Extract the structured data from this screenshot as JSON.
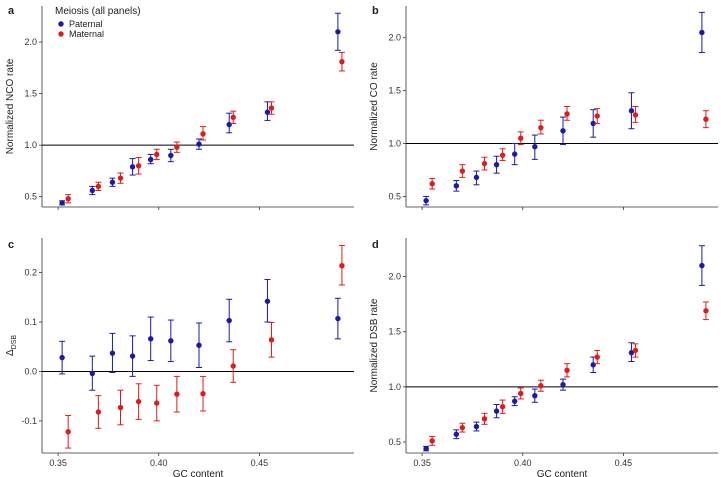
{
  "colors": {
    "paternal": "#1a1aa8",
    "maternal": "#e01b1b",
    "axis": "#333333",
    "refline": "#000000"
  },
  "legend": {
    "title": "Meiosis (all panels)",
    "entries": [
      "Paternal",
      "Maternal"
    ]
  },
  "chart_data": [
    {
      "panel": "a",
      "type": "scatter",
      "xlabel": "",
      "ylabel": "Normalized NCO rate",
      "xlim": [
        0.342,
        0.497
      ],
      "ylim": [
        0.4,
        2.35
      ],
      "xticks": [
        0.35,
        0.4,
        0.45
      ],
      "yticks": [
        0.5,
        1.0,
        1.5,
        2.0
      ],
      "yticklabels": [
        "0.5",
        "1.0",
        "1.5",
        "2.0"
      ],
      "hline": 1.0,
      "series": [
        {
          "name": "Paternal",
          "x": [
            0.352,
            0.367,
            0.377,
            0.387,
            0.396,
            0.406,
            0.42,
            0.435,
            0.454,
            0.489
          ],
          "y": [
            0.44,
            0.56,
            0.64,
            0.79,
            0.86,
            0.9,
            1.01,
            1.2,
            1.32,
            2.1
          ],
          "lo": [
            0.42,
            0.52,
            0.6,
            0.71,
            0.82,
            0.84,
            0.96,
            1.12,
            1.24,
            1.92
          ],
          "hi": [
            0.46,
            0.6,
            0.68,
            0.87,
            0.91,
            0.96,
            1.06,
            1.31,
            1.42,
            2.28
          ]
        },
        {
          "name": "Maternal",
          "x": [
            0.355,
            0.37,
            0.381,
            0.39,
            0.399,
            0.409,
            0.422,
            0.437,
            0.456,
            0.491
          ],
          "y": [
            0.48,
            0.6,
            0.68,
            0.8,
            0.91,
            0.98,
            1.11,
            1.27,
            1.36,
            1.81
          ],
          "lo": [
            0.44,
            0.56,
            0.63,
            0.72,
            0.86,
            0.93,
            1.05,
            1.21,
            1.3,
            1.72
          ],
          "hi": [
            0.52,
            0.64,
            0.73,
            0.88,
            0.96,
            1.03,
            1.18,
            1.33,
            1.42,
            1.9
          ]
        }
      ]
    },
    {
      "panel": "b",
      "type": "scatter",
      "xlabel": "",
      "ylabel": "Normalized CO rate",
      "xlim": [
        0.342,
        0.497
      ],
      "ylim": [
        0.4,
        2.3
      ],
      "xticks": [
        0.35,
        0.4,
        0.45
      ],
      "yticks": [
        0.5,
        1.0,
        1.5,
        2.0
      ],
      "yticklabels": [
        "0.5",
        "1.0",
        "1.5",
        "2.0"
      ],
      "hline": 1.0,
      "series": [
        {
          "name": "Paternal",
          "x": [
            0.352,
            0.367,
            0.377,
            0.387,
            0.396,
            0.406,
            0.42,
            0.435,
            0.454,
            0.489
          ],
          "y": [
            0.46,
            0.6,
            0.68,
            0.8,
            0.9,
            0.97,
            1.12,
            1.19,
            1.31,
            2.05
          ],
          "lo": [
            0.42,
            0.55,
            0.61,
            0.72,
            0.8,
            0.85,
            0.99,
            1.06,
            1.14,
            1.86
          ],
          "hi": [
            0.5,
            0.65,
            0.74,
            0.88,
            1.0,
            1.08,
            1.25,
            1.32,
            1.48,
            2.24
          ]
        },
        {
          "name": "Maternal",
          "x": [
            0.355,
            0.37,
            0.381,
            0.39,
            0.399,
            0.409,
            0.422,
            0.437,
            0.456,
            0.491
          ],
          "y": [
            0.62,
            0.74,
            0.81,
            0.89,
            1.05,
            1.15,
            1.28,
            1.26,
            1.27,
            1.23
          ],
          "lo": [
            0.57,
            0.68,
            0.75,
            0.84,
            0.99,
            1.09,
            1.22,
            1.19,
            1.2,
            1.15
          ],
          "hi": [
            0.67,
            0.8,
            0.87,
            0.95,
            1.11,
            1.22,
            1.35,
            1.33,
            1.35,
            1.31
          ]
        }
      ]
    },
    {
      "panel": "c",
      "type": "scatter",
      "xlabel": "GC content",
      "ylabel": "Δ_DSB",
      "xlim": [
        0.342,
        0.497
      ],
      "ylim": [
        -0.165,
        0.27
      ],
      "xticks": [
        0.35,
        0.4,
        0.45
      ],
      "xticklabels": [
        "0.35",
        "0.40",
        "0.45"
      ],
      "yticks": [
        -0.1,
        0.0,
        0.1,
        0.2
      ],
      "yticklabels": [
        "-0.1",
        "0.0",
        "0.1",
        "0.2"
      ],
      "hline": 0.0,
      "series": [
        {
          "name": "Paternal",
          "x": [
            0.352,
            0.367,
            0.377,
            0.387,
            0.396,
            0.406,
            0.42,
            0.435,
            0.454,
            0.489
          ],
          "y": [
            0.028,
            -0.004,
            0.037,
            0.031,
            0.066,
            0.062,
            0.053,
            0.103,
            0.142,
            0.107
          ],
          "lo": [
            -0.005,
            -0.038,
            -0.002,
            -0.01,
            0.022,
            0.02,
            0.008,
            0.06,
            0.1,
            0.066
          ],
          "hi": [
            0.061,
            0.031,
            0.077,
            0.072,
            0.11,
            0.104,
            0.098,
            0.146,
            0.186,
            0.148
          ]
        },
        {
          "name": "Maternal",
          "x": [
            0.355,
            0.37,
            0.381,
            0.39,
            0.399,
            0.409,
            0.422,
            0.437,
            0.456,
            0.491
          ],
          "y": [
            -0.122,
            -0.082,
            -0.073,
            -0.061,
            -0.064,
            -0.046,
            -0.045,
            0.011,
            0.064,
            0.214
          ],
          "lo": [
            -0.155,
            -0.115,
            -0.108,
            -0.097,
            -0.1,
            -0.082,
            -0.08,
            -0.022,
            0.029,
            0.175
          ],
          "hi": [
            -0.089,
            -0.049,
            -0.038,
            -0.025,
            -0.028,
            -0.01,
            -0.01,
            0.044,
            0.099,
            0.255
          ]
        }
      ]
    },
    {
      "panel": "d",
      "type": "scatter",
      "xlabel": "GC content",
      "ylabel": "Normalized DSB rate",
      "xlim": [
        0.342,
        0.497
      ],
      "ylim": [
        0.4,
        2.35
      ],
      "xticks": [
        0.35,
        0.4,
        0.45
      ],
      "xticklabels": [
        "0.35",
        "0.40",
        "0.45"
      ],
      "yticks": [
        0.5,
        1.0,
        1.5,
        2.0
      ],
      "yticklabels": [
        "0.5",
        "1.0",
        "1.5",
        "2.0"
      ],
      "hline": 1.0,
      "series": [
        {
          "name": "Paternal",
          "x": [
            0.352,
            0.367,
            0.377,
            0.387,
            0.396,
            0.406,
            0.42,
            0.435,
            0.454,
            0.489
          ],
          "y": [
            0.44,
            0.57,
            0.64,
            0.78,
            0.87,
            0.92,
            1.02,
            1.2,
            1.31,
            2.1
          ],
          "lo": [
            0.42,
            0.53,
            0.6,
            0.72,
            0.83,
            0.86,
            0.97,
            1.13,
            1.23,
            1.92
          ],
          "hi": [
            0.46,
            0.61,
            0.68,
            0.84,
            0.91,
            0.98,
            1.07,
            1.27,
            1.4,
            2.28
          ]
        },
        {
          "name": "Maternal",
          "x": [
            0.355,
            0.37,
            0.381,
            0.39,
            0.399,
            0.409,
            0.422,
            0.437,
            0.456,
            0.491
          ],
          "y": [
            0.51,
            0.63,
            0.71,
            0.82,
            0.94,
            1.01,
            1.15,
            1.27,
            1.33,
            1.69
          ],
          "lo": [
            0.47,
            0.59,
            0.66,
            0.76,
            0.89,
            0.96,
            1.09,
            1.21,
            1.27,
            1.61
          ],
          "hi": [
            0.55,
            0.67,
            0.76,
            0.88,
            0.99,
            1.06,
            1.21,
            1.33,
            1.39,
            1.77
          ]
        }
      ]
    }
  ]
}
